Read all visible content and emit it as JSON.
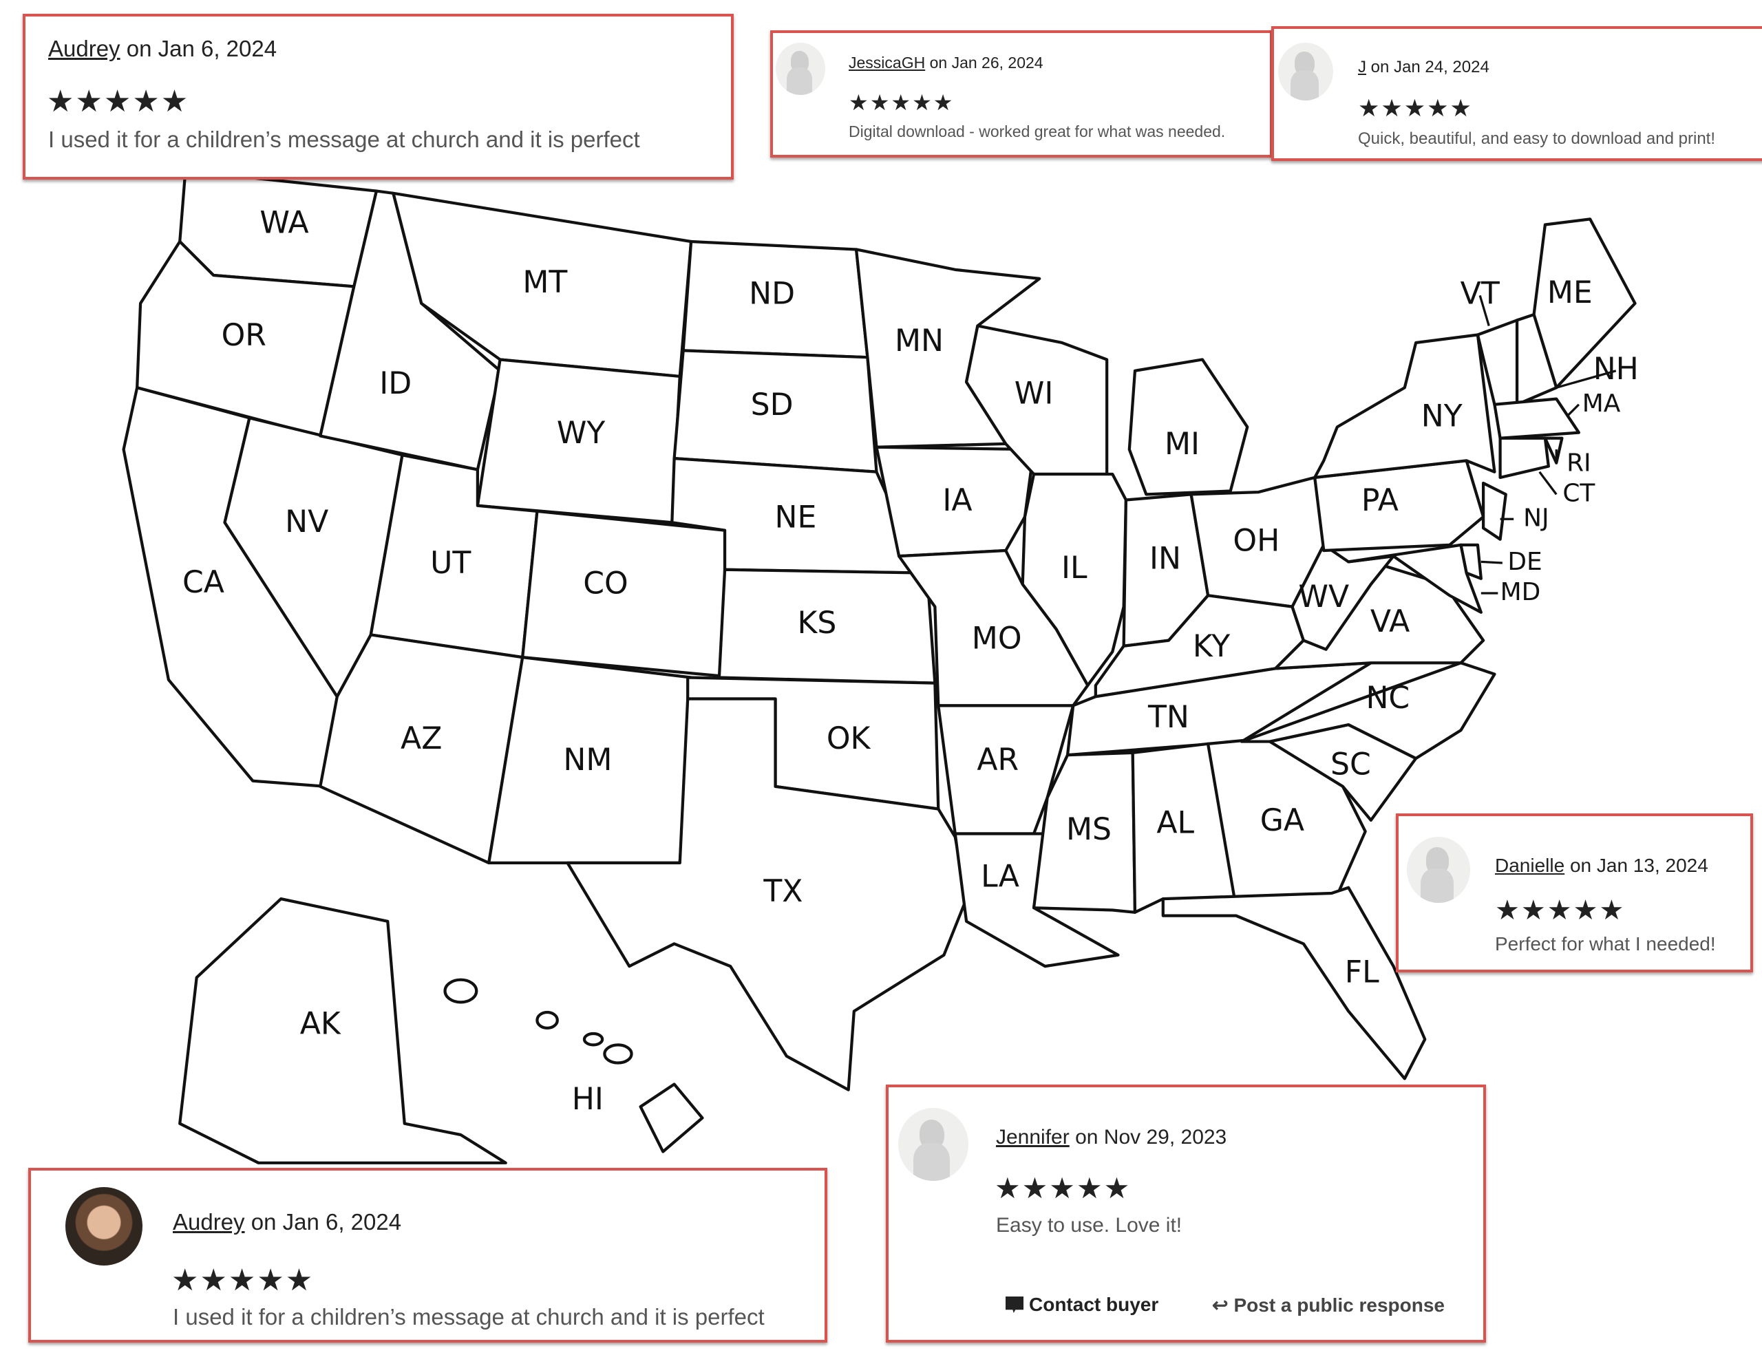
{
  "map": {
    "states": [
      "WA",
      "OR",
      "CA",
      "NV",
      "ID",
      "MT",
      "WY",
      "UT",
      "CO",
      "AZ",
      "NM",
      "ND",
      "SD",
      "NE",
      "KS",
      "OK",
      "TX",
      "MN",
      "IA",
      "MO",
      "AR",
      "LA",
      "WI",
      "IL",
      "MI",
      "IN",
      "OH",
      "KY",
      "TN",
      "MS",
      "AL",
      "GA",
      "FL",
      "SC",
      "NC",
      "VA",
      "WV",
      "PA",
      "NY",
      "VT",
      "ME",
      "NH",
      "MA",
      "RI",
      "CT",
      "NJ",
      "DE",
      "MD",
      "AK",
      "HI"
    ]
  },
  "reviews": [
    {
      "reviewer": "Audrey",
      "date_text": "on Jan 6, 2024",
      "stars": "★★★★★",
      "rating": 5,
      "text": "I used it for a children’s message at church and it is perfect"
    },
    {
      "reviewer": "JessicaGH",
      "date_text": "on Jan 26, 2024",
      "stars": "★★★★★",
      "rating": 5,
      "text": "Digital download - worked great for what was needed."
    },
    {
      "reviewer": "J",
      "date_text": "on Jan 24, 2024",
      "stars": "★★★★★",
      "rating": 5,
      "text": "Quick, beautiful, and easy to download and print!"
    },
    {
      "reviewer": "Danielle",
      "date_text": "on Jan 13, 2024",
      "stars": "★★★★★",
      "rating": 5,
      "text": "Perfect for what I needed!"
    },
    {
      "reviewer": "Audrey",
      "date_text": "on Jan 6, 2024",
      "stars": "★★★★★",
      "rating": 5,
      "text": "I used it for a children’s message at church and it is perfect"
    },
    {
      "reviewer": "Jennifer",
      "date_text": "on Nov 29, 2023",
      "stars": "★★★★★",
      "rating": 5,
      "text": "Easy to use. Love it!",
      "contact_label": "Contact buyer",
      "respond_label": "Post a public response"
    }
  ],
  "colors": {
    "highlight_border": "#d9534f",
    "star": "#222222"
  }
}
